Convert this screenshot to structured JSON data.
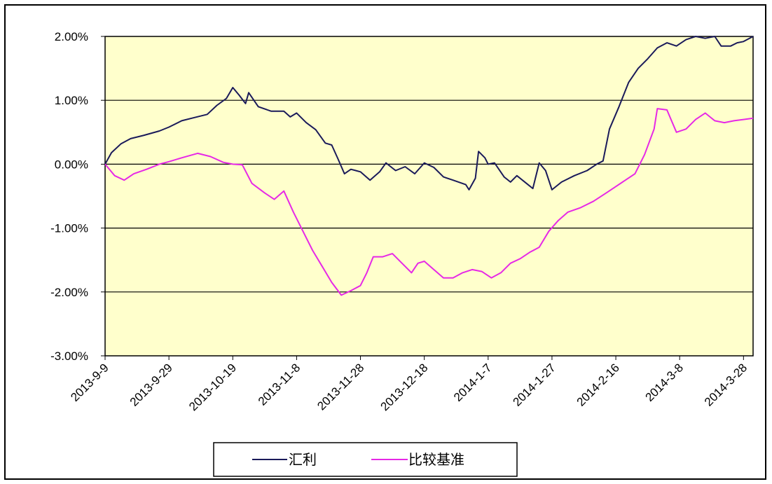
{
  "chart_data": {
    "type": "line",
    "title": "",
    "xlabel": "",
    "ylabel": "",
    "ylim": [
      -0.03,
      0.02
    ],
    "yticks": [
      0.02,
      0.01,
      0.0,
      -0.01,
      -0.02,
      -0.03
    ],
    "ytick_labels": [
      "2.00%",
      "1.00%",
      "0.00%",
      "-1.00%",
      "-2.00%",
      "-3.00%"
    ],
    "xtick_labels": [
      "2013-9-9",
      "2013-9-29",
      "2013-10-19",
      "2013-11-8",
      "2013-11-28",
      "2013-12-18",
      "2014-1-7",
      "2014-1-27",
      "2014-2-16",
      "2014-3-8",
      "2014-3-28"
    ],
    "x_start": "2013-09-09",
    "x_end": "2014-03-31",
    "grid": "horizontal",
    "legend_position": "bottom-center",
    "plot_background": "#ffffcc",
    "series": [
      {
        "name": "汇利",
        "color": "#1a1a5a",
        "points": [
          [
            "2013-09-09",
            0.0
          ],
          [
            "2013-09-11",
            0.0018
          ],
          [
            "2013-09-14",
            0.0032
          ],
          [
            "2013-09-17",
            0.004
          ],
          [
            "2013-09-21",
            0.0045
          ],
          [
            "2013-09-26",
            0.0052
          ],
          [
            "2013-09-29",
            0.0058
          ],
          [
            "2013-10-03",
            0.0068
          ],
          [
            "2013-10-07",
            0.0073
          ],
          [
            "2013-10-11",
            0.0078
          ],
          [
            "2013-10-14",
            0.0092
          ],
          [
            "2013-10-17",
            0.0103
          ],
          [
            "2013-10-19",
            0.012
          ],
          [
            "2013-10-21",
            0.0108
          ],
          [
            "2013-10-23",
            0.0095
          ],
          [
            "2013-10-24",
            0.0112
          ],
          [
            "2013-10-27",
            0.009
          ],
          [
            "2013-10-31",
            0.0083
          ],
          [
            "2013-11-04",
            0.0083
          ],
          [
            "2013-11-06",
            0.0074
          ],
          [
            "2013-11-08",
            0.008
          ],
          [
            "2013-11-11",
            0.0065
          ],
          [
            "2013-11-14",
            0.0054
          ],
          [
            "2013-11-17",
            0.0033
          ],
          [
            "2013-11-19",
            0.003
          ],
          [
            "2013-11-21",
            0.0008
          ],
          [
            "2013-11-23",
            -0.0015
          ],
          [
            "2013-11-25",
            -0.0008
          ],
          [
            "2013-11-28",
            -0.0012
          ],
          [
            "2013-12-01",
            -0.0025
          ],
          [
            "2013-12-04",
            -0.0012
          ],
          [
            "2013-12-06",
            0.0002
          ],
          [
            "2013-12-09",
            -0.001
          ],
          [
            "2013-12-12",
            -0.0004
          ],
          [
            "2013-12-15",
            -0.0015
          ],
          [
            "2013-12-18",
            0.0002
          ],
          [
            "2013-12-21",
            -0.0005
          ],
          [
            "2013-12-24",
            -0.002
          ],
          [
            "2013-12-27",
            -0.0025
          ],
          [
            "2013-12-31",
            -0.0032
          ],
          [
            "2014-01-01",
            -0.004
          ],
          [
            "2014-01-03",
            -0.0022
          ],
          [
            "2014-01-04",
            0.002
          ],
          [
            "2014-01-06",
            0.001
          ],
          [
            "2014-01-07",
            0.0
          ],
          [
            "2014-01-09",
            0.0002
          ],
          [
            "2014-01-12",
            -0.002
          ],
          [
            "2014-01-14",
            -0.0028
          ],
          [
            "2014-01-16",
            -0.0018
          ],
          [
            "2014-01-19",
            -0.003
          ],
          [
            "2014-01-21",
            -0.0038
          ],
          [
            "2014-01-23",
            0.0002
          ],
          [
            "2014-01-25",
            -0.001
          ],
          [
            "2014-01-27",
            -0.004
          ],
          [
            "2014-01-30",
            -0.0028
          ],
          [
            "2014-02-03",
            -0.0018
          ],
          [
            "2014-02-07",
            -0.001
          ],
          [
            "2014-02-10",
            0.0
          ],
          [
            "2014-02-12",
            0.0005
          ],
          [
            "2014-02-14",
            0.0055
          ],
          [
            "2014-02-17",
            0.009
          ],
          [
            "2014-02-20",
            0.0128
          ],
          [
            "2014-02-23",
            0.015
          ],
          [
            "2014-02-26",
            0.0165
          ],
          [
            "2014-03-01",
            0.0182
          ],
          [
            "2014-03-04",
            0.019
          ],
          [
            "2014-03-07",
            0.0185
          ],
          [
            "2014-03-10",
            0.0195
          ],
          [
            "2014-03-13",
            0.02
          ],
          [
            "2014-03-16",
            0.0197
          ],
          [
            "2014-03-19",
            0.02
          ],
          [
            "2014-03-21",
            0.0185
          ],
          [
            "2014-03-24",
            0.0185
          ],
          [
            "2014-03-26",
            0.019
          ],
          [
            "2014-03-28",
            0.0192
          ],
          [
            "2014-03-31",
            0.02
          ]
        ]
      },
      {
        "name": "比较基准",
        "color": "#e628e6",
        "points": [
          [
            "2013-09-09",
            0.0
          ],
          [
            "2013-09-12",
            -0.0018
          ],
          [
            "2013-09-15",
            -0.0025
          ],
          [
            "2013-09-18",
            -0.0015
          ],
          [
            "2013-09-22",
            -0.0008
          ],
          [
            "2013-09-26",
            0.0
          ],
          [
            "2013-09-29",
            0.0004
          ],
          [
            "2013-10-03",
            0.001
          ],
          [
            "2013-10-08",
            0.0017
          ],
          [
            "2013-10-12",
            0.0012
          ],
          [
            "2013-10-16",
            0.0003
          ],
          [
            "2013-10-19",
            0.0
          ],
          [
            "2013-10-22",
            -0.0001
          ],
          [
            "2013-10-25",
            -0.003
          ],
          [
            "2013-10-29",
            -0.0045
          ],
          [
            "2013-11-01",
            -0.0055
          ],
          [
            "2013-11-04",
            -0.0042
          ],
          [
            "2013-11-07",
            -0.0075
          ],
          [
            "2013-11-10",
            -0.0105
          ],
          [
            "2013-11-13",
            -0.0135
          ],
          [
            "2013-11-16",
            -0.016
          ],
          [
            "2013-11-19",
            -0.0185
          ],
          [
            "2013-11-22",
            -0.0205
          ],
          [
            "2013-11-25",
            -0.0198
          ],
          [
            "2013-11-28",
            -0.019
          ],
          [
            "2013-11-30",
            -0.017
          ],
          [
            "2013-12-02",
            -0.0145
          ],
          [
            "2013-12-05",
            -0.0145
          ],
          [
            "2013-12-08",
            -0.014
          ],
          [
            "2013-12-11",
            -0.0155
          ],
          [
            "2013-12-14",
            -0.017
          ],
          [
            "2013-12-16",
            -0.0155
          ],
          [
            "2013-12-18",
            -0.0152
          ],
          [
            "2013-12-21",
            -0.0165
          ],
          [
            "2013-12-24",
            -0.0178
          ],
          [
            "2013-12-27",
            -0.0178
          ],
          [
            "2013-12-30",
            -0.017
          ],
          [
            "2014-01-02",
            -0.0165
          ],
          [
            "2014-01-05",
            -0.0168
          ],
          [
            "2014-01-08",
            -0.0178
          ],
          [
            "2014-01-11",
            -0.017
          ],
          [
            "2014-01-14",
            -0.0155
          ],
          [
            "2014-01-17",
            -0.0148
          ],
          [
            "2014-01-20",
            -0.0138
          ],
          [
            "2014-01-23",
            -0.013
          ],
          [
            "2014-01-26",
            -0.0105
          ],
          [
            "2014-01-29",
            -0.0088
          ],
          [
            "2014-02-01",
            -0.0075
          ],
          [
            "2014-02-05",
            -0.0068
          ],
          [
            "2014-02-09",
            -0.0058
          ],
          [
            "2014-02-13",
            -0.0045
          ],
          [
            "2014-02-16",
            -0.0035
          ],
          [
            "2014-02-19",
            -0.0025
          ],
          [
            "2014-02-22",
            -0.0015
          ],
          [
            "2014-02-25",
            0.0015
          ],
          [
            "2014-02-28",
            0.0055
          ],
          [
            "2014-03-01",
            0.0087
          ],
          [
            "2014-03-04",
            0.0085
          ],
          [
            "2014-03-07",
            0.005
          ],
          [
            "2014-03-10",
            0.0055
          ],
          [
            "2014-03-13",
            0.007
          ],
          [
            "2014-03-16",
            0.008
          ],
          [
            "2014-03-19",
            0.0068
          ],
          [
            "2014-03-22",
            0.0065
          ],
          [
            "2014-03-25",
            0.0068
          ],
          [
            "2014-03-28",
            0.007
          ],
          [
            "2014-03-31",
            0.0072
          ]
        ]
      }
    ]
  }
}
